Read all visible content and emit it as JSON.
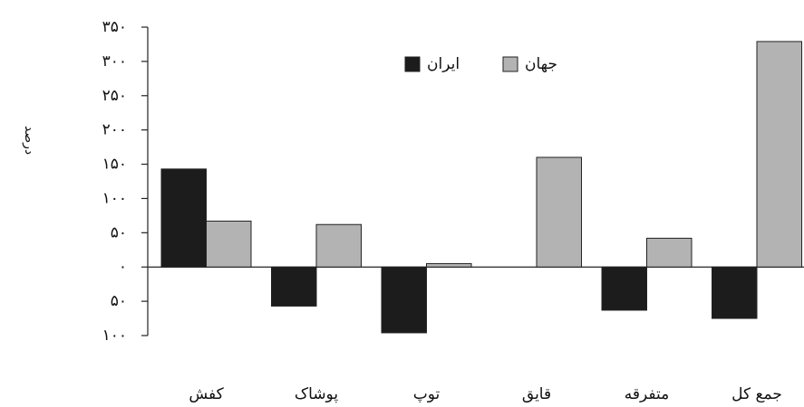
{
  "chart_data": {
    "type": "bar",
    "y_label": "درصد",
    "categories": [
      "کفش",
      "پوشاک",
      "توپ",
      "قایق",
      "متفرقه",
      "جمع کل"
    ],
    "series": [
      {
        "name": "ایران",
        "color": "#1c1c1c",
        "values": [
          143,
          -57,
          -96,
          0,
          -63,
          -75
        ]
      },
      {
        "name": "جهان",
        "color": "#b3b3b3",
        "values": [
          67,
          62,
          5,
          160,
          42,
          329
        ]
      }
    ],
    "ylim": [
      -100,
      350
    ],
    "yticks": [
      {
        "value": -100,
        "label": "۱۰۰"
      },
      {
        "value": -50,
        "label": "۵۰"
      },
      {
        "value": 0,
        "label": "۰"
      },
      {
        "value": 50,
        "label": "۵۰"
      },
      {
        "value": 100,
        "label": "۱۰۰"
      },
      {
        "value": 150,
        "label": "۱۵۰"
      },
      {
        "value": 200,
        "label": "۲۰۰"
      },
      {
        "value": 250,
        "label": "۲۵۰"
      },
      {
        "value": 300,
        "label": "۳۰۰"
      },
      {
        "value": 350,
        "label": "۳۵۰"
      }
    ],
    "legend": "top"
  }
}
